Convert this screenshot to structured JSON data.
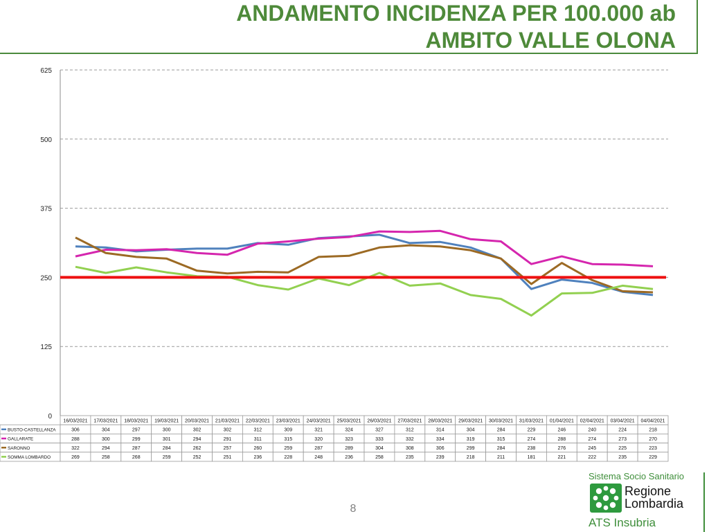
{
  "header": {
    "title_line_1": "ANDAMENTO INCIDENZA PER 100.000 ab",
    "title_line_2": "AMBITO VALLE OLONA"
  },
  "chart_data": {
    "type": "line",
    "title": "",
    "xlabel": "",
    "ylabel": "",
    "ylim": [
      0,
      625
    ],
    "y_ticks": [
      "0",
      "125",
      "250",
      "375",
      "500",
      "625"
    ],
    "grid": true,
    "gridline_style": "dashed",
    "legend": "data table below the plot",
    "categories": [
      "16/03/2021",
      "17/03/2021",
      "18/03/2021",
      "19/03/2021",
      "20/03/2021",
      "21/03/2021",
      "22/03/2021",
      "23/03/2021",
      "24/03/2021",
      "25/03/2021",
      "26/03/2021",
      "27/03/2021",
      "28/03/2021",
      "29/03/2021",
      "30/03/2021",
      "31/03/2021",
      "01/04/2021",
      "02/04/2021",
      "03/04/2021",
      "04/04/2021"
    ],
    "series": [
      {
        "name": "BUSTO-CASTELLANZA",
        "color": "#4f81bd",
        "values": [
          306,
          304,
          297,
          300,
          302,
          302,
          312,
          309,
          321,
          324,
          327,
          312,
          314,
          304,
          284,
          229,
          246,
          240,
          224,
          218
        ]
      },
      {
        "name": "GALLARATE",
        "color": "#d526ae",
        "values": [
          288,
          300,
          299,
          301,
          294,
          291,
          311,
          315,
          320,
          323,
          333,
          332,
          334,
          319,
          315,
          274,
          288,
          274,
          273,
          270
        ]
      },
      {
        "name": "SARONNO",
        "color": "#9c6a24",
        "values": [
          322,
          294,
          287,
          284,
          262,
          257,
          260,
          259,
          287,
          289,
          304,
          308,
          306,
          299,
          284,
          238,
          276,
          245,
          225,
          223
        ]
      },
      {
        "name": "SOMMA LOMBARDO",
        "color": "#92d050",
        "values": [
          269,
          258,
          268,
          259,
          252,
          251,
          236,
          228,
          248,
          236,
          258,
          235,
          239,
          218,
          211,
          181,
          221,
          222,
          235,
          229
        ]
      }
    ],
    "threshold": {
      "value": 250,
      "color": "#ee1111"
    }
  },
  "footer": {
    "page_number": "8"
  },
  "logo": {
    "system_label": "Sistema Socio Sanitario",
    "region_line_1": "Regione",
    "region_line_2": "Lombardia",
    "ats_label": "ATS Insubria",
    "color": "#3e8e3a"
  }
}
